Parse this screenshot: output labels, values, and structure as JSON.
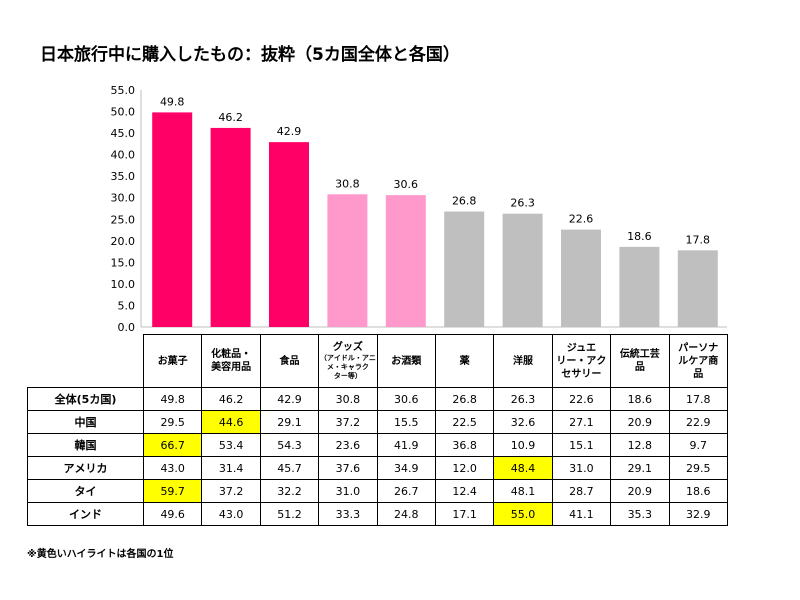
{
  "title": "日本旅行中に購入したもの：抜粋（5カ国全体と各国）",
  "footnote": "※黄色いハイライトは各国の1位",
  "colors": {
    "bar_primary": "#ff0066",
    "bar_secondary": "#ff99cc",
    "bar_tertiary": "#bfbfbf",
    "highlight": "#ffff00"
  },
  "chart_data": {
    "type": "bar",
    "categories": [
      "お菓子",
      "化粧品・美容用品",
      "食品",
      "グッズ（アイドル・アニメ・キャラクター等）",
      "お酒類",
      "薬",
      "洋服",
      "ジュエリー・アクセサリー",
      "伝統工芸品",
      "パーソナルケア商品"
    ],
    "values": [
      49.8,
      46.2,
      42.9,
      30.8,
      30.6,
      26.8,
      26.3,
      22.6,
      18.6,
      17.8
    ],
    "bar_color_groups": [
      "primary",
      "primary",
      "primary",
      "secondary",
      "secondary",
      "tertiary",
      "tertiary",
      "tertiary",
      "tertiary",
      "tertiary"
    ],
    "ylim": [
      0,
      55
    ],
    "yticks": [
      "0.0",
      "5.0",
      "10.0",
      "15.0",
      "20.0",
      "25.0",
      "30.0",
      "35.0",
      "40.0",
      "45.0",
      "50.0",
      "55.0"
    ],
    "value_labels": [
      "49.8",
      "46.2",
      "42.9",
      "30.8",
      "30.6",
      "26.8",
      "26.3",
      "22.6",
      "18.6",
      "17.8"
    ],
    "grid": false,
    "legend": "none"
  },
  "table": {
    "headers": [
      [
        "お菓子"
      ],
      [
        "化粧品・",
        "美容用品"
      ],
      [
        "食品"
      ],
      [
        "グッズ",
        "（アイドル・アニ",
        "メ・キャラク",
        "ター等）"
      ],
      [
        "お酒類"
      ],
      [
        "薬"
      ],
      [
        "洋服"
      ],
      [
        "ジュエ",
        "リー・アク",
        "セサリー"
      ],
      [
        "伝統工芸",
        "品"
      ],
      [
        "パーソナ",
        "ルケア商",
        "品"
      ]
    ],
    "rows": [
      {
        "label": "全体(5カ国)",
        "values": [
          "49.8",
          "46.2",
          "42.9",
          "30.8",
          "30.6",
          "26.8",
          "26.3",
          "22.6",
          "18.6",
          "17.8"
        ],
        "highlight": -1
      },
      {
        "label": "中国",
        "values": [
          "29.5",
          "44.6",
          "29.1",
          "37.2",
          "15.5",
          "22.5",
          "32.6",
          "27.1",
          "20.9",
          "22.9"
        ],
        "highlight": 1
      },
      {
        "label": "韓国",
        "values": [
          "66.7",
          "53.4",
          "54.3",
          "23.6",
          "41.9",
          "36.8",
          "10.9",
          "15.1",
          "12.8",
          "9.7"
        ],
        "highlight": 0
      },
      {
        "label": "アメリカ",
        "values": [
          "43.0",
          "31.4",
          "45.7",
          "37.6",
          "34.9",
          "12.0",
          "48.4",
          "31.0",
          "29.1",
          "29.5"
        ],
        "highlight": 6
      },
      {
        "label": "タイ",
        "values": [
          "59.7",
          "37.2",
          "32.2",
          "31.0",
          "26.7",
          "12.4",
          "48.1",
          "28.7",
          "20.9",
          "18.6"
        ],
        "highlight": 0
      },
      {
        "label": "インド",
        "values": [
          "49.6",
          "43.0",
          "51.2",
          "33.3",
          "24.8",
          "17.1",
          "55.0",
          "41.1",
          "35.3",
          "32.9"
        ],
        "highlight": 6
      }
    ]
  }
}
